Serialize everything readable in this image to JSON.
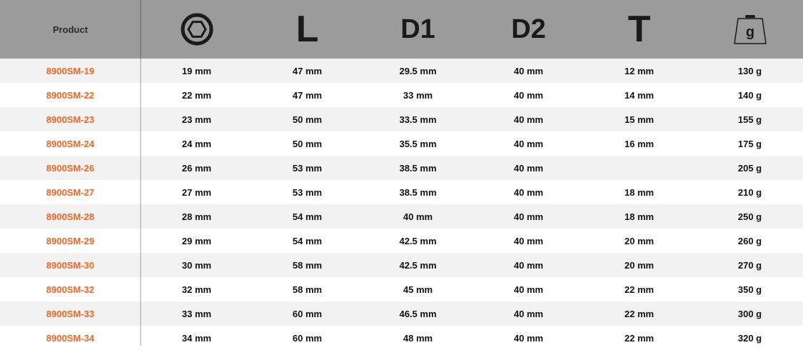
{
  "header": {
    "product": "Product",
    "columns": [
      {
        "icon": "hexagon-socket-icon",
        "label": ""
      },
      {
        "icon": "",
        "label": "L"
      },
      {
        "icon": "",
        "label": "D1"
      },
      {
        "icon": "",
        "label": "D2"
      },
      {
        "icon": "",
        "label": "T"
      },
      {
        "icon": "weight-icon",
        "label": "g"
      }
    ]
  },
  "colors": {
    "header_bg": "#9b9b9b",
    "product_text": "#f26522",
    "row_alt": "#f2f2f2"
  },
  "rows": [
    {
      "product": "8900SM-19",
      "cells": [
        "19 mm",
        "47 mm",
        "29.5 mm",
        "40 mm",
        "12 mm",
        "130 g"
      ]
    },
    {
      "product": "8900SM-22",
      "cells": [
        "22 mm",
        "47 mm",
        "33 mm",
        "40 mm",
        "14 mm",
        "140 g"
      ]
    },
    {
      "product": "8900SM-23",
      "cells": [
        "23 mm",
        "50 mm",
        "33.5 mm",
        "40 mm",
        "15 mm",
        "155 g"
      ]
    },
    {
      "product": "8900SM-24",
      "cells": [
        "24 mm",
        "50 mm",
        "35.5 mm",
        "40 mm",
        "16 mm",
        "175 g"
      ]
    },
    {
      "product": "8900SM-26",
      "cells": [
        "26 mm",
        "53 mm",
        "38.5 mm",
        "40 mm",
        "",
        "205 g"
      ]
    },
    {
      "product": "8900SM-27",
      "cells": [
        "27 mm",
        "53 mm",
        "38.5 mm",
        "40 mm",
        "18 mm",
        "210 g"
      ]
    },
    {
      "product": "8900SM-28",
      "cells": [
        "28 mm",
        "54 mm",
        "40 mm",
        "40 mm",
        "18 mm",
        "250 g"
      ]
    },
    {
      "product": "8900SM-29",
      "cells": [
        "29 mm",
        "54 mm",
        "42.5 mm",
        "40 mm",
        "20 mm",
        "260 g"
      ]
    },
    {
      "product": "8900SM-30",
      "cells": [
        "30 mm",
        "58 mm",
        "42.5 mm",
        "40 mm",
        "20 mm",
        "270 g"
      ]
    },
    {
      "product": "8900SM-32",
      "cells": [
        "32 mm",
        "58 mm",
        "45 mm",
        "40 mm",
        "22 mm",
        "350 g"
      ]
    },
    {
      "product": "8900SM-33",
      "cells": [
        "33 mm",
        "60 mm",
        "46.5 mm",
        "40 mm",
        "22 mm",
        "300 g"
      ]
    },
    {
      "product": "8900SM-34",
      "cells": [
        "34 mm",
        "60 mm",
        "48 mm",
        "40 mm",
        "22 mm",
        "320 g"
      ]
    }
  ]
}
